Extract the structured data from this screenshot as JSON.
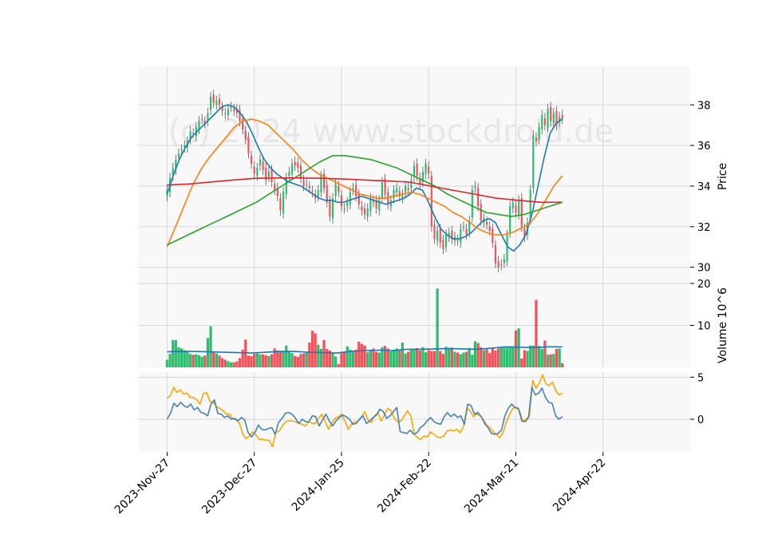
{
  "watermark": "(c) 2024 www.stockdroid.de",
  "colors": {
    "up": "#2ebd6e",
    "down": "#f0545b",
    "ma_short": "#1f77b4",
    "ma_mid": "#ff7f0e",
    "ma_long": "#2ca02c",
    "ma_xlong": "#d62728",
    "volume_ma": "#1f77b4",
    "osc_a": "#ffa500",
    "osc_b": "#4682b4",
    "grid": "#d9d9d9",
    "panel_bg": "#f8f8f8"
  },
  "chart_data": {
    "type": "candlestick",
    "x_ticks": [
      "2023-Nov-27",
      "2023-Dec-27",
      "2024-Jan-25",
      "2024-Feb-22",
      "2024-Mar-21",
      "2024-Apr-22"
    ],
    "x_tick_index": [
      0,
      30,
      60,
      90,
      120,
      150
    ],
    "x_range": [
      -10,
      180
    ],
    "price_panel": {
      "ylabel": "Price",
      "yticks": [
        30,
        32,
        34,
        36,
        38
      ],
      "ylim": [
        29.2,
        39.9
      ],
      "close": [
        33.8,
        34.4,
        34.9,
        35.3,
        35.6,
        35.8,
        36.0,
        36.2,
        36.7,
        36.6,
        36.9,
        37.2,
        37.3,
        37.1,
        37.6,
        38.4,
        38.1,
        38.2,
        38.0,
        37.7,
        37.6,
        37.8,
        37.9,
        37.7,
        37.6,
        37.2,
        36.8,
        36.3,
        35.6,
        35.1,
        34.6,
        34.9,
        35.3,
        34.8,
        34.3,
        34.7,
        34.2,
        33.8,
        33.5,
        32.8,
        33.7,
        34.4,
        34.7,
        35.1,
        35.0,
        34.9,
        34.4,
        34.0,
        34.1,
        33.9,
        33.7,
        33.4,
        33.8,
        34.5,
        33.9,
        33.2,
        32.5,
        33.4,
        34.1,
        33.7,
        33.0,
        32.9,
        33.2,
        33.7,
        33.9,
        33.5,
        33.1,
        32.8,
        32.6,
        32.9,
        33.4,
        33.2,
        32.9,
        33.3,
        34.2,
        33.6,
        33.1,
        33.3,
        33.8,
        33.9,
        33.5,
        33.6,
        34.0,
        33.8,
        34.3,
        35.0,
        34.5,
        34.1,
        34.7,
        35.1,
        34.6,
        32.0,
        31.4,
        31.8,
        31.2,
        30.9,
        31.6,
        31.7,
        31.4,
        31.5,
        31.3,
        31.9,
        32.0,
        31.6,
        32.3,
        33.8,
        34.0,
        33.0,
        32.3,
        32.4,
        32.1,
        31.8,
        31.2,
        30.2,
        30.0,
        30.1,
        30.4,
        31.6,
        33.0,
        33.2,
        32.7,
        33.3,
        32.0,
        31.5,
        32.2,
        33.8,
        36.5,
        36.2,
        36.9,
        37.5,
        37.0,
        37.8,
        37.2,
        37.6,
        37.0,
        37.4,
        37.3
      ],
      "moving_averages": [
        {
          "values": [
            33.6,
            34.5,
            35.3,
            35.9,
            36.4,
            36.7,
            37.0,
            37.3,
            37.6,
            37.9,
            38.0,
            37.9,
            37.6,
            37.2,
            36.6,
            35.9,
            35.3,
            34.9,
            34.6,
            34.4,
            34.2,
            34.1,
            34.0,
            33.8,
            33.6,
            33.4,
            33.3,
            33.3,
            33.2,
            33.2,
            33.3,
            33.4,
            33.5,
            33.4,
            33.3,
            33.2,
            33.1,
            33.2,
            33.3,
            33.4,
            33.6,
            33.9,
            33.8,
            33.2,
            32.5,
            31.9,
            31.6,
            31.4,
            31.4,
            31.5,
            31.7,
            32.0,
            32.3,
            32.4,
            32.2,
            31.6,
            31.0,
            30.8,
            31.1,
            31.6,
            32.6,
            34.0,
            35.4,
            36.6,
            37.1,
            37.3
          ]
        },
        {
          "values": [
            31.0,
            32.0,
            33.0,
            34.0,
            34.8,
            35.4,
            35.9,
            36.4,
            36.9,
            37.2,
            37.3,
            37.2,
            37.0,
            36.6,
            36.2,
            35.8,
            35.3,
            34.9,
            34.6,
            34.4,
            34.2,
            34.0,
            33.8,
            33.6,
            33.5,
            33.4,
            33.4,
            33.5,
            33.6,
            33.7,
            33.6,
            33.4,
            33.2,
            33.0,
            32.7,
            32.5,
            32.2,
            31.9,
            31.7,
            31.6,
            31.6,
            31.7,
            31.9,
            32.1,
            32.6,
            33.3,
            34.0,
            34.5
          ]
        },
        {
          "values": [
            31.1,
            31.4,
            31.7,
            32.0,
            32.3,
            32.6,
            32.9,
            33.2,
            33.6,
            34.0,
            34.4,
            34.8,
            35.2,
            35.5,
            35.5,
            35.4,
            35.3,
            35.1,
            34.9,
            34.6,
            34.3,
            34.0,
            33.6,
            33.3,
            33.0,
            32.7,
            32.6,
            32.5,
            32.6,
            32.8,
            33.0,
            33.2
          ]
        },
        {
          "values": [
            34.05,
            34.1,
            34.2,
            34.3,
            34.38,
            34.4,
            34.4,
            34.38,
            34.35,
            34.3,
            34.25,
            34.2,
            34.0,
            33.8,
            33.6,
            33.4,
            33.3,
            33.2,
            33.2
          ]
        }
      ]
    },
    "volume_panel": {
      "ylabel": "Volume  10^6",
      "yticks": [
        10,
        20
      ],
      "ylim": [
        0,
        20
      ],
      "values": [
        1.8,
        3.2,
        6.5,
        6.5,
        4.8,
        4.5,
        4.1,
        3.8,
        3.2,
        3.0,
        3.1,
        2.9,
        2.5,
        2.8,
        7.0,
        9.8,
        3.7,
        3.3,
        2.8,
        2.2,
        1.8,
        1.5,
        1.2,
        1.2,
        1.4,
        2.2,
        4.2,
        6.6,
        2.8,
        2.7,
        3.2,
        3.3,
        3.1,
        3.1,
        2.9,
        2.7,
        3.1,
        4.5,
        4.0,
        3.9,
        3.9,
        5.2,
        3.8,
        3.4,
        2.7,
        2.5,
        3.2,
        3.3,
        3.5,
        5.9,
        8.7,
        8.1,
        5.4,
        4.4,
        6.5,
        4.4,
        4.0,
        3.5,
        2.6,
        0.8,
        3.4,
        3.6,
        5.0,
        4.2,
        3.7,
        4.2,
        6.1,
        5.6,
        5.2,
        3.6,
        4.1,
        4.5,
        3.7,
        3.5,
        4.8,
        5.1,
        4.5,
        3.8,
        4.2,
        4.5,
        4.0,
        5.9,
        3.3,
        3.7,
        4.3,
        4.2,
        4.6,
        4.0,
        4.8,
        3.6,
        4.1,
        3.9,
        3.9,
        18.8,
        3.9,
        3.2,
        4.9,
        4.4,
        4.7,
        3.7,
        3.5,
        3.1,
        3.5,
        3.7,
        4.6,
        3.0,
        6.2,
        5.8,
        4.8,
        4.1,
        4.3,
        3.4,
        4.6,
        4.0,
        4.5,
        4.6,
        4.8,
        4.7,
        5.0,
        4.8,
        8.8,
        9.3,
        2.1,
        4.1,
        3.9,
        5.2,
        5.2,
        16.1,
        5.1,
        4.4,
        6.4,
        3.0,
        3.1,
        3.2,
        4.4,
        4.5,
        1.0
      ],
      "ma_values": [
        3.7,
        3.8,
        3.8,
        3.7,
        3.6,
        3.5,
        3.4,
        3.6,
        3.8,
        3.8,
        3.6,
        3.5,
        3.4,
        3.8,
        4.0,
        4.1,
        4.0,
        4.3,
        4.3,
        4.4,
        4.5,
        4.4,
        4.3,
        4.6,
        4.9,
        4.8,
        4.7,
        4.9,
        4.9
      ]
    },
    "oscillator_panel": {
      "yticks": [
        0,
        5
      ],
      "ylim": [
        -3.9,
        5.6
      ],
      "series_a": [
        2.5,
        2.8,
        3.8,
        3.2,
        3.5,
        3.0,
        3.1,
        2.6,
        2.6,
        2.3,
        1.8,
        3.0,
        3.2,
        2.1,
        2.0,
        1.5,
        1.3,
        1.0,
        0.6,
        0.6,
        0.0,
        -0.1,
        -0.5,
        -1.8,
        -2.3,
        -2.0,
        -1.5,
        -1.9,
        -2.4,
        -2.4,
        -2.5,
        -2.5,
        -3.3,
        -1.6,
        -1.4,
        -0.8,
        -0.3,
        -0.2,
        -0.2,
        -0.3,
        -0.5,
        -0.6,
        -0.8,
        -0.3,
        -0.5,
        -0.5,
        0.1,
        0.6,
        -0.3,
        -1.2,
        -0.5,
        0.1,
        0.3,
        0.6,
        -0.2,
        -1.2,
        -0.6,
        -0.3,
        -0.2,
        0.3,
        0.9,
        -0.1,
        -0.4,
        0.4,
        0.8,
        -0.2,
        0.5,
        1.3,
        1.0,
        0.1,
        -0.3,
        -0.2,
        0.4,
        1.0,
        0.4,
        -1.7,
        -2.2,
        -2.4,
        -2.0,
        -2.1,
        -1.5,
        -1.8,
        -2.1,
        -2.2,
        -2.0,
        -1.4,
        -1.3,
        -1.4,
        -1.2,
        -1.6,
        -0.9,
        1.3,
        1.0,
        0.3,
        0.6,
        0.4,
        0.0,
        -0.7,
        -1.0,
        -1.5,
        -1.8,
        -2.2,
        -1.6,
        -0.3,
        0.6,
        1.3,
        1.4,
        1.0,
        -0.3,
        0.0,
        0.4,
        4.6,
        3.7,
        4.3,
        5.3,
        4.2,
        4.0,
        4.4,
        3.4,
        2.9,
        3.1
      ],
      "series_b": [
        0.0,
        0.7,
        1.9,
        1.5,
        2.0,
        1.6,
        1.4,
        1.8,
        1.1,
        1.4,
        0.8,
        0.7,
        0.4,
        1.8,
        2.3,
        0.7,
        0.6,
        0.2,
        0.4,
        0.0,
        0.1,
        -0.2,
        0.2,
        -0.1,
        -1.6,
        -2.1,
        -1.6,
        -0.7,
        -1.2,
        -1.3,
        -1.1,
        -1.0,
        -1.8,
        -0.4,
        0.1,
        0.7,
        0.8,
        0.6,
        0.1,
        -0.5,
        0.0,
        -0.3,
        -0.3,
        0.4,
        0.3,
        -0.8,
        -0.1,
        0.6,
        -0.2,
        -0.8,
        -0.2,
        0.2,
        0.5,
        0.3,
        0.0,
        -0.6,
        -0.5,
        0.0,
        0.4,
        -0.5,
        -0.2,
        0.2,
        0.5,
        1.2,
        0.9,
        0.1,
        0.4,
        0.9,
        1.4,
        -1.5,
        -1.6,
        -1.7,
        -1.3,
        -1.8,
        -1.6,
        -1.0,
        -0.7,
        -0.2,
        0.2,
        -0.3,
        -0.5,
        -0.6,
        0.3,
        0.8,
        0.3,
        0.6,
        0.2,
        0.4,
        -0.6,
        1.8,
        1.6,
        0.6,
        0.8,
        0.3,
        -0.5,
        -1.0,
        -1.7,
        -1.8,
        -1.7,
        -1.3,
        0.4,
        1.3,
        1.8,
        1.4,
        1.3,
        -0.2,
        -0.3,
        0.2,
        3.8,
        2.9,
        3.1,
        3.7,
        2.6,
        2.0,
        1.9,
        0.4,
        0.0,
        0.3
      ]
    }
  }
}
